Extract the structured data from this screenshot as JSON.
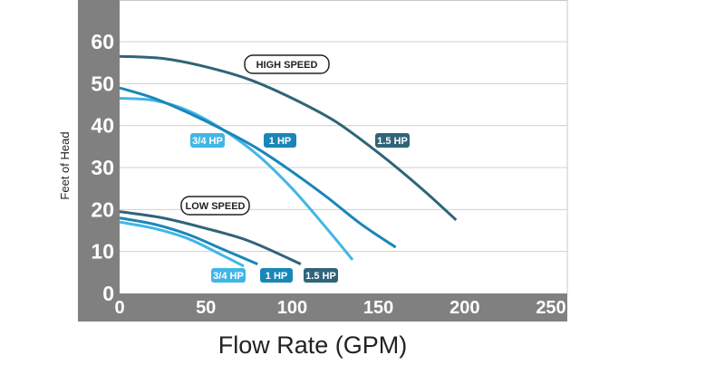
{
  "chart_data": {
    "type": "line",
    "xlabel": "Flow Rate (GPM)",
    "ylabel": "Feet of Head",
    "xlim": [
      0,
      250
    ],
    "ylim": [
      0,
      60
    ],
    "xticks": [
      "0",
      "50",
      "100",
      "150",
      "200",
      "250"
    ],
    "yticks": [
      "0",
      "10",
      "20",
      "30",
      "40",
      "50",
      "60"
    ],
    "grid": "horizontal",
    "groups": [
      {
        "label": "HIGH SPEED",
        "series": [
          {
            "name": "3/4 HP",
            "color": "#41b6e6",
            "x": [
              0,
              20,
              40,
              60,
              80,
              100,
              120,
              135
            ],
            "y": [
              46.5,
              46,
              43.5,
              39,
              33,
              25,
              15.5,
              8
            ]
          },
          {
            "name": "1 HP",
            "color": "#1a86b8",
            "x": [
              0,
              20,
              40,
              60,
              80,
              100,
              120,
              140,
              160
            ],
            "y": [
              49,
              46.5,
              43,
              39,
              34.5,
              29,
              23,
              16.5,
              11
            ]
          },
          {
            "name": "1.5 HP",
            "color": "#2f6479",
            "x": [
              0,
              25,
              50,
              75,
              100,
              125,
              150,
              175,
              195
            ],
            "y": [
              56.5,
              56,
              54,
              51,
              46.5,
              41,
              33.5,
              25,
              17.5
            ]
          }
        ]
      },
      {
        "label": "LOW SPEED",
        "series": [
          {
            "name": "3/4 HP",
            "color": "#41b6e6",
            "x": [
              0,
              20,
              40,
              60,
              72
            ],
            "y": [
              17,
              15.5,
              13,
              9,
              6.5
            ]
          },
          {
            "name": "1 HP",
            "color": "#1a86b8",
            "x": [
              0,
              20,
              40,
              60,
              80
            ],
            "y": [
              18,
              16.5,
              14,
              10.5,
              7
            ]
          },
          {
            "name": "1.5 HP",
            "color": "#2f6479",
            "x": [
              0,
              25,
              50,
              75,
              105
            ],
            "y": [
              19.5,
              18,
              15.5,
              12.5,
              7
            ]
          }
        ]
      }
    ]
  }
}
